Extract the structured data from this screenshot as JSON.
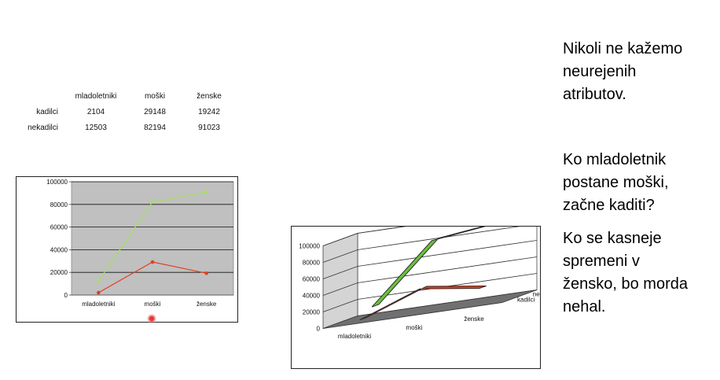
{
  "table": {
    "columns": [
      "mladoletniki",
      "moški",
      "ženske"
    ],
    "rows": [
      {
        "label": "kadilci",
        "values": [
          "2104",
          "29148",
          "19242"
        ]
      },
      {
        "label": "nekadilci",
        "values": [
          "12503",
          "82194",
          "91023"
        ]
      }
    ]
  },
  "chart_data": [
    {
      "type": "line",
      "categories": [
        "mladoletniki",
        "moški",
        "ženske"
      ],
      "series": [
        {
          "name": "kadilci",
          "values": [
            2104,
            29148,
            19242
          ],
          "color": "#e04020"
        },
        {
          "name": "nekadilci",
          "values": [
            12503,
            82194,
            91023
          ],
          "color": "#a6e060"
        }
      ],
      "ylim": [
        0,
        100000
      ],
      "yticks": [
        "0",
        "20000",
        "40000",
        "60000",
        "80000",
        "100000"
      ],
      "grid": true,
      "plot_background": "#c0c0c0"
    },
    {
      "type": "line",
      "variant": "3d-ribbon",
      "categories": [
        "mladoletniki",
        "moški",
        "ženske"
      ],
      "series": [
        {
          "name": "kadilci",
          "values": [
            2104,
            29148,
            19242
          ],
          "color": "#e03c1c"
        },
        {
          "name": "nekadilci",
          "values": [
            12503,
            82194,
            91023
          ],
          "color": "#6cc040"
        }
      ],
      "ylim": [
        0,
        100000
      ],
      "yticks": [
        "0",
        "20000",
        "40000",
        "60000",
        "80000",
        "100000"
      ],
      "depth_labels": [
        "nekadilci",
        "kadilci"
      ],
      "grid": true
    }
  ],
  "text": {
    "p1": "Nikoli ne kažemo\nneurejenih\natributov.",
    "p2": "Ko mladoletnik\npostane moški,\nzačne kaditi?",
    "p3": "Ko se kasneje\nspremeni v\nžensko, bo morda\nnehal."
  }
}
